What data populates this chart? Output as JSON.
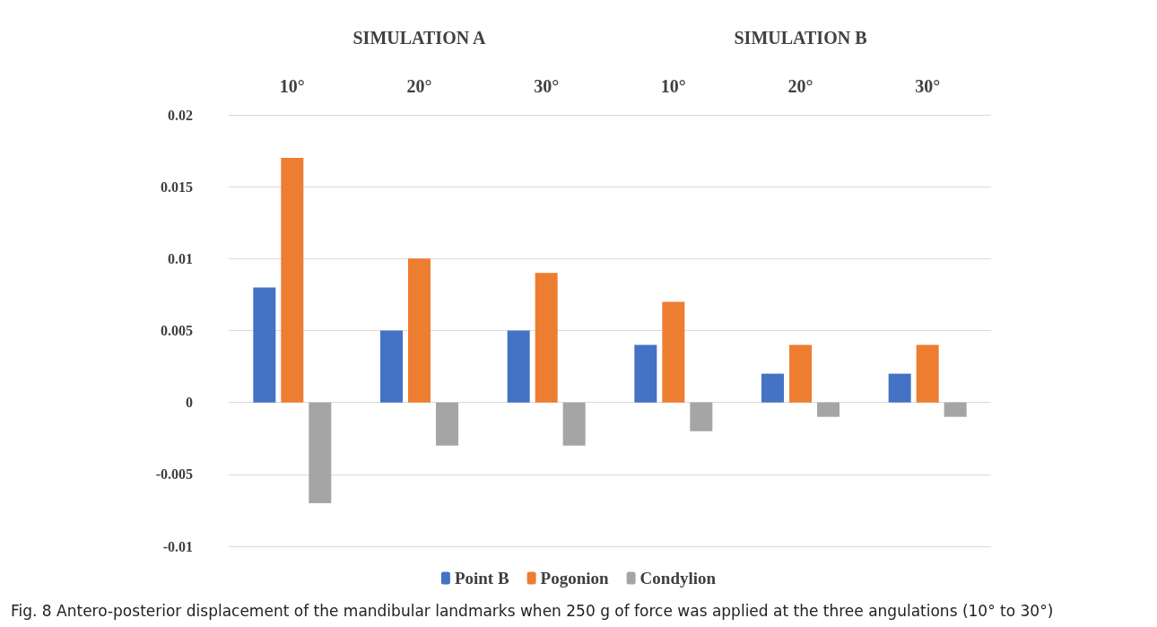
{
  "chart_data": {
    "type": "bar",
    "categories": [
      "10°",
      "20°",
      "30°",
      "10°",
      "20°",
      "30°"
    ],
    "series": [
      {
        "name": "Point B",
        "color": "#4472c4",
        "values": [
          0.008,
          0.005,
          0.005,
          0.004,
          0.002,
          0.002
        ]
      },
      {
        "name": "Pogonion",
        "color": "#ed7d31",
        "values": [
          0.017,
          0.01,
          0.009,
          0.007,
          0.004,
          0.004
        ]
      },
      {
        "name": "Condylion",
        "color": "#a5a5a5",
        "values": [
          -0.007,
          -0.003,
          -0.003,
          -0.002,
          -0.001,
          -0.001
        ]
      }
    ],
    "ylim": [
      -0.01,
      0.02
    ],
    "yticks": [
      -0.01,
      -0.005,
      0,
      0.005,
      0.01,
      0.015,
      0.02
    ],
    "grid": "y",
    "legend": "bottom",
    "annotations": [
      "SIMULATION A",
      "SIMULATION B",
      "Fig. 8 Antero-posterior displacement of the mandibular landmarks when 250 g of force was applied at the three angulations (10° to 30°)"
    ]
  }
}
